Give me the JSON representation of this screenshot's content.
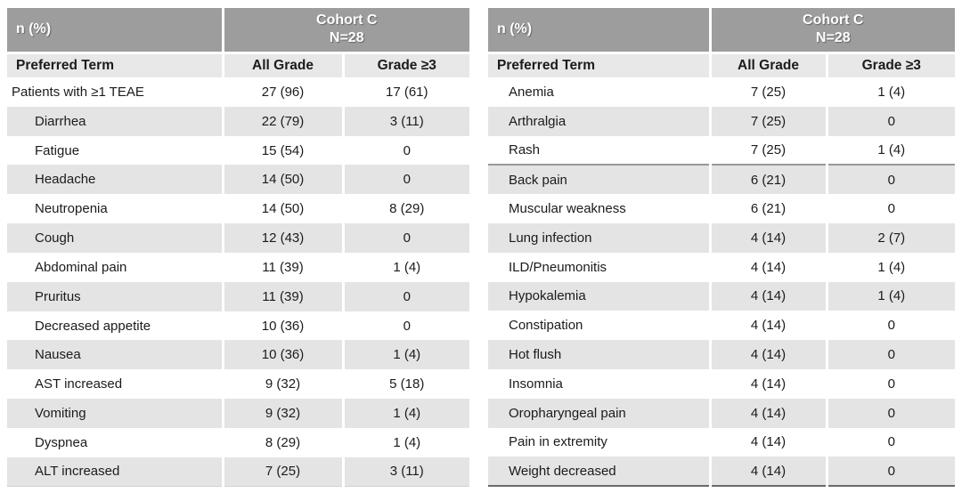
{
  "style": {
    "header_bg": "#9d9d9d",
    "header_text": "#ffffff",
    "subheader_bg": "#e8e8e8",
    "stripe_bg": "#e4e4e4",
    "body_text": "#1b1b1b",
    "right_table_bottom_border": "#6b6b6b",
    "section_divider": "#989898"
  },
  "chart_data": [
    {
      "type": "table",
      "header": {
        "unit": "n (%)",
        "cohort": "Cohort C",
        "n": "N=28"
      },
      "columns": [
        "Preferred Term",
        "All Grade",
        "Grade ≥3"
      ],
      "rows": [
        {
          "term": "Patients with ≥1 TEAE",
          "all_grade": "27 (96)",
          "grade_ge3": "17 (61)",
          "indent": false
        },
        {
          "term": "Diarrhea",
          "all_grade": "22 (79)",
          "grade_ge3": "3 (11)",
          "indent": true
        },
        {
          "term": "Fatigue",
          "all_grade": "15 (54)",
          "grade_ge3": "0",
          "indent": true
        },
        {
          "term": "Headache",
          "all_grade": "14 (50)",
          "grade_ge3": "0",
          "indent": true
        },
        {
          "term": "Neutropenia",
          "all_grade": "14 (50)",
          "grade_ge3": "8 (29)",
          "indent": true
        },
        {
          "term": "Cough",
          "all_grade": "12 (43)",
          "grade_ge3": "0",
          "indent": true
        },
        {
          "term": "Abdominal pain",
          "all_grade": "11 (39)",
          "grade_ge3": "1 (4)",
          "indent": true
        },
        {
          "term": "Pruritus",
          "all_grade": "11 (39)",
          "grade_ge3": "0",
          "indent": true
        },
        {
          "term": "Decreased appetite",
          "all_grade": "10 (36)",
          "grade_ge3": "0",
          "indent": true
        },
        {
          "term": "Nausea",
          "all_grade": "10 (36)",
          "grade_ge3": "1 (4)",
          "indent": true
        },
        {
          "term": "AST increased",
          "all_grade": "9 (32)",
          "grade_ge3": "5 (18)",
          "indent": true
        },
        {
          "term": "Vomiting",
          "all_grade": "9 (32)",
          "grade_ge3": "1 (4)",
          "indent": true
        },
        {
          "term": "Dyspnea",
          "all_grade": "8 (29)",
          "grade_ge3": "1 (4)",
          "indent": true
        },
        {
          "term": "ALT increased",
          "all_grade": "7 (25)",
          "grade_ge3": "3 (11)",
          "indent": true
        }
      ]
    },
    {
      "type": "table",
      "header": {
        "unit": "n (%)",
        "cohort": "Cohort C",
        "n": "N=28"
      },
      "columns": [
        "Preferred Term",
        "All Grade",
        "Grade ≥3"
      ],
      "rows": [
        {
          "term": "Anemia",
          "all_grade": "7 (25)",
          "grade_ge3": "1 (4)",
          "indent": true
        },
        {
          "term": "Arthralgia",
          "all_grade": "7 (25)",
          "grade_ge3": "0",
          "indent": true
        },
        {
          "term": "Rash",
          "all_grade": "7 (25)",
          "grade_ge3": "1 (4)",
          "indent": true,
          "divider_below": true
        },
        {
          "term": "Back pain",
          "all_grade": "6 (21)",
          "grade_ge3": "0",
          "indent": true
        },
        {
          "term": "Muscular weakness",
          "all_grade": "6 (21)",
          "grade_ge3": "0",
          "indent": true
        },
        {
          "term": "Lung infection",
          "all_grade": "4 (14)",
          "grade_ge3": "2 (7)",
          "indent": true
        },
        {
          "term": "ILD/Pneumonitis",
          "all_grade": "4 (14)",
          "grade_ge3": "1 (4)",
          "indent": true
        },
        {
          "term": "Hypokalemia",
          "all_grade": "4 (14)",
          "grade_ge3": "1 (4)",
          "indent": true
        },
        {
          "term": "Constipation",
          "all_grade": "4 (14)",
          "grade_ge3": "0",
          "indent": true
        },
        {
          "term": "Hot flush",
          "all_grade": "4 (14)",
          "grade_ge3": "0",
          "indent": true
        },
        {
          "term": "Insomnia",
          "all_grade": "4 (14)",
          "grade_ge3": "0",
          "indent": true
        },
        {
          "term": "Oropharyngeal pain",
          "all_grade": "4 (14)",
          "grade_ge3": "0",
          "indent": true
        },
        {
          "term": "Pain in extremity",
          "all_grade": "4 (14)",
          "grade_ge3": "0",
          "indent": true
        },
        {
          "term": "Weight decreased",
          "all_grade": "4 (14)",
          "grade_ge3": "0",
          "indent": true
        }
      ]
    }
  ]
}
